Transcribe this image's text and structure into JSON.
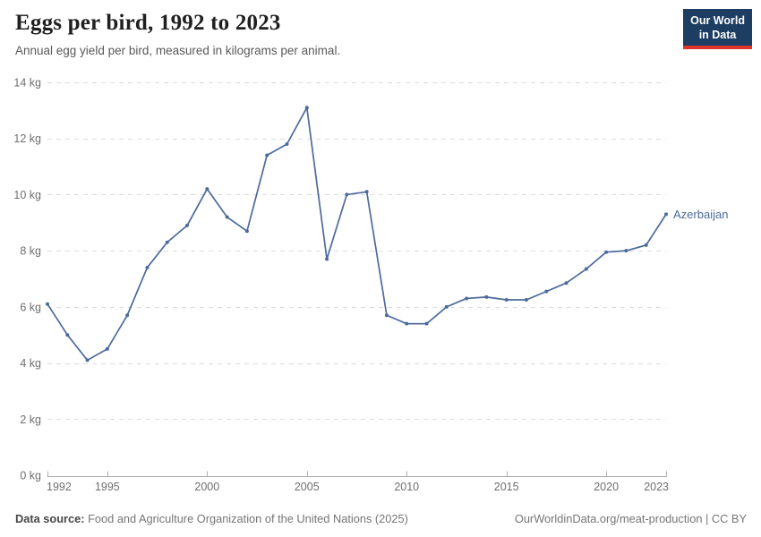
{
  "header": {
    "title": "Eggs per bird, 1992 to 2023",
    "subtitle": "Annual egg yield per bird, measured in kilograms per animal.",
    "logo": {
      "line1": "Our World",
      "line2": "in Data",
      "bg_color": "#1d3d63",
      "accent_color": "#dd352a"
    }
  },
  "chart_data": {
    "type": "line",
    "title": "Eggs per bird, 1992 to 2023",
    "xlabel": "",
    "ylabel": "",
    "x": [
      1992,
      1993,
      1994,
      1995,
      1996,
      1997,
      1998,
      1999,
      2000,
      2001,
      2002,
      2003,
      2004,
      2005,
      2006,
      2007,
      2008,
      2009,
      2010,
      2011,
      2012,
      2013,
      2014,
      2015,
      2016,
      2017,
      2018,
      2019,
      2020,
      2021,
      2022,
      2023
    ],
    "series": [
      {
        "name": "Azerbaijan",
        "color": "#4c6a9c",
        "values": [
          6.1,
          5.0,
          4.1,
          4.5,
          5.7,
          7.4,
          8.3,
          8.9,
          10.2,
          9.2,
          8.7,
          11.4,
          11.8,
          13.1,
          7.7,
          10.0,
          10.1,
          5.7,
          5.4,
          5.4,
          6.0,
          6.3,
          6.35,
          6.25,
          6.25,
          6.55,
          6.85,
          7.35,
          7.95,
          8.0,
          8.2,
          9.3
        ]
      }
    ],
    "xticks": [
      1992,
      1995,
      2000,
      2005,
      2010,
      2015,
      2020,
      2023
    ],
    "yticks": [
      0,
      2,
      4,
      6,
      8,
      10,
      12,
      14
    ],
    "y_unit": "kg",
    "xlim": [
      1992,
      2023
    ],
    "ylim": [
      0,
      14
    ],
    "grid": "horizontal-dashed",
    "legend_position": "entity-label-right-of-line"
  },
  "footer": {
    "source_label": "Data source:",
    "source_text": "Food and Agriculture Organization of the United Nations (2025)",
    "credit": "OurWorldinData.org/meat-production | CC BY"
  }
}
